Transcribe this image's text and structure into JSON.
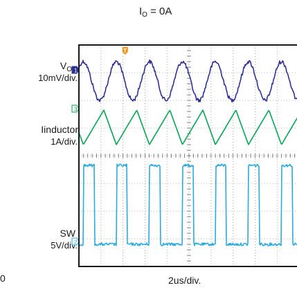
{
  "chart_data": {
    "type": "line",
    "title": {
      "main": "I",
      "sub": "O",
      "rest": " = 0A"
    },
    "timebase": "2us/div.",
    "left_edge_label": "0",
    "grid": true,
    "trigger_marker": "T",
    "channels": [
      {
        "id": "vo",
        "name": {
          "main": "V",
          "sub": "O"
        },
        "scale": "10mV/div.",
        "marker": "1",
        "color": "#2e3192",
        "waveform": "sine",
        "period_div": 1.5,
        "amplitude_div": 0.7,
        "center_div": 1.3,
        "phase_div": 0.2,
        "noise_div": 0.07
      },
      {
        "id": "il",
        "name": "Iinductor",
        "scale": "1A/div.",
        "marker": "3",
        "color": "#00a651",
        "waveform": "triangle",
        "period_div": 1.5,
        "peak_div": 2.35,
        "valley_div": 3.6,
        "rise_fraction": 0.62,
        "phase_div": 0.2
      },
      {
        "id": "sw",
        "name": "SW",
        "scale": "5V/div.",
        "marker": "2",
        "color": "#29abe2",
        "waveform": "pulse",
        "period_div": 1.5,
        "high_div": 4.35,
        "low_div": 7.2,
        "high_fraction": 0.33,
        "phase_div": 0.2,
        "noise_div": 0.05
      }
    ]
  }
}
